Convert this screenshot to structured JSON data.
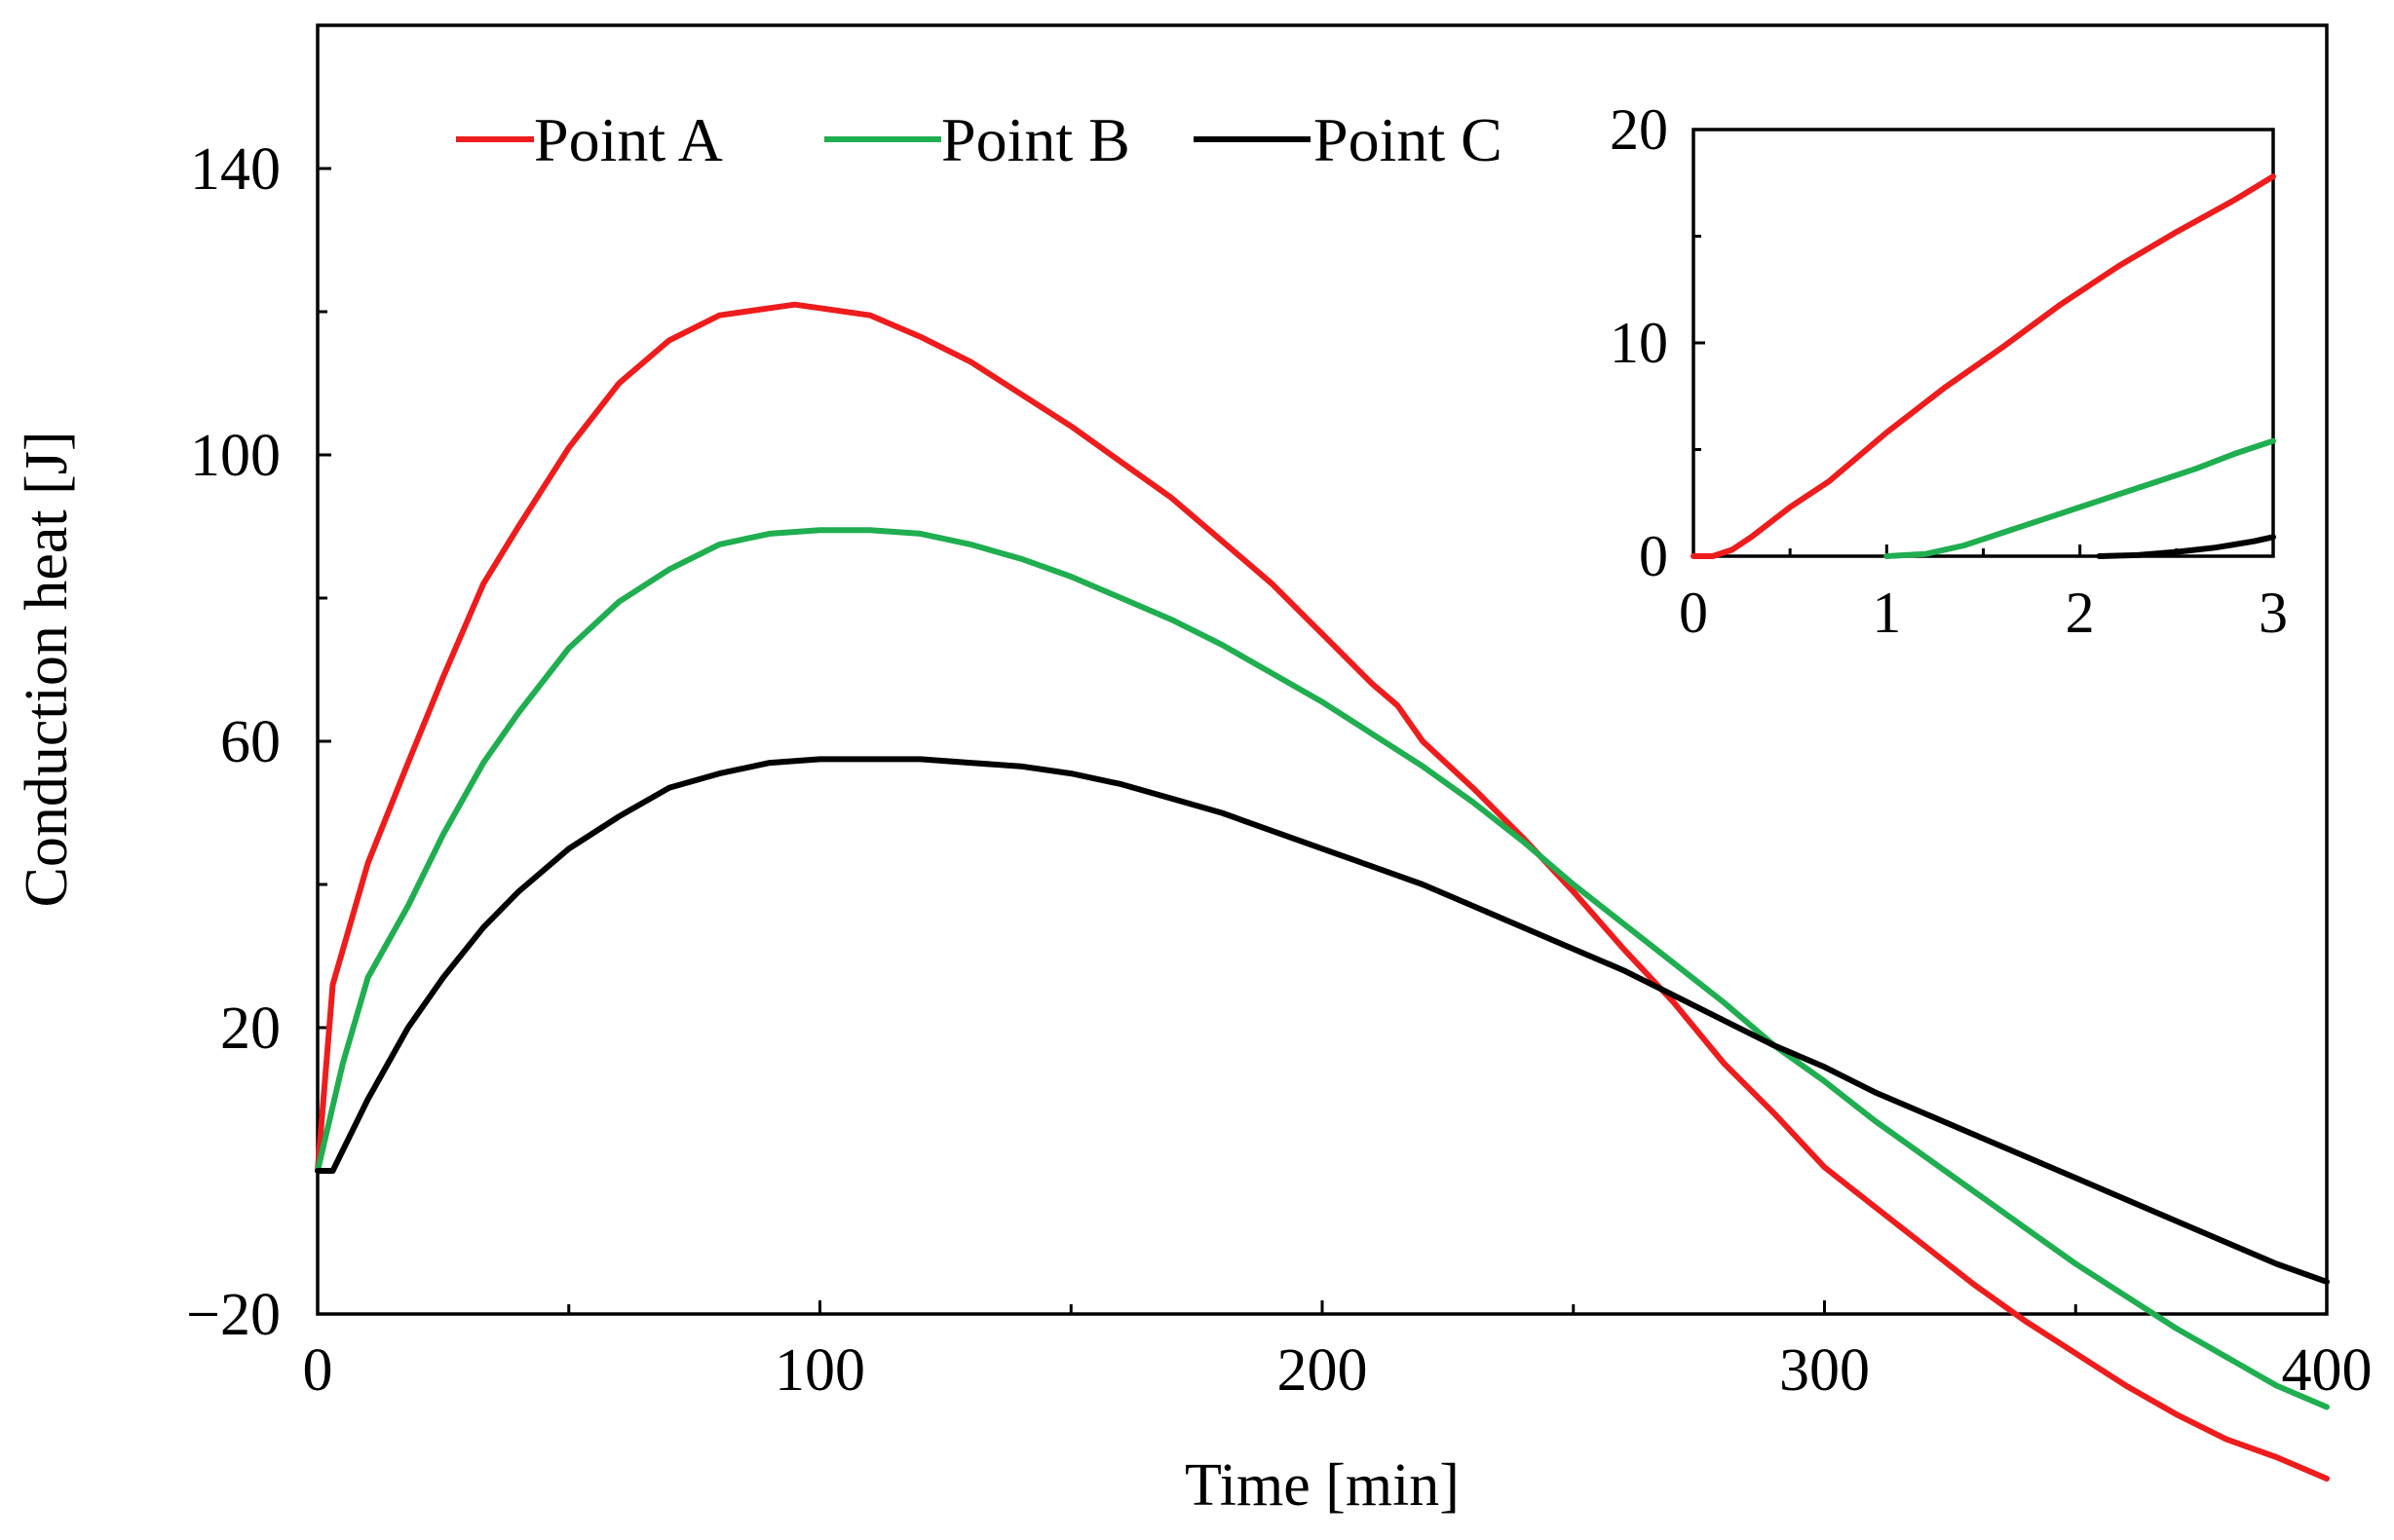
{
  "chart_data": [
    {
      "type": "line",
      "xlabel": "Time [min]",
      "ylabel": "Conduction heat [J]",
      "xlim": [
        0,
        400
      ],
      "ylim": [
        -20,
        160
      ],
      "xticks": [
        0,
        100,
        200,
        300,
        400
      ],
      "yticks": [
        -20,
        20,
        60,
        100,
        140
      ],
      "xtick_labels": [
        "0",
        "100",
        "200",
        "300",
        "400"
      ],
      "ytick_labels": [
        "−20",
        "20",
        "60",
        "100",
        "140"
      ],
      "grid": false,
      "legend": "top-left, horizontal",
      "series": [
        {
          "name": "Point A",
          "color": "#ee1c1c",
          "x": [
            0,
            3,
            10,
            18,
            25,
            33,
            40,
            50,
            60,
            70,
            80,
            90,
            95,
            100,
            110,
            120,
            130,
            140,
            150,
            160,
            170,
            180,
            190,
            200,
            210,
            215,
            220,
            230,
            240,
            250,
            260,
            270,
            280,
            290,
            300,
            310,
            320,
            330,
            340,
            350,
            360,
            370,
            380,
            390,
            400
          ],
          "y": [
            0,
            26,
            43,
            57,
            69,
            82,
            90,
            101,
            110,
            116,
            119.5,
            120.5,
            121,
            120.5,
            119.5,
            116.5,
            113,
            108.5,
            104,
            99,
            94,
            88,
            82,
            75,
            68,
            65,
            60,
            53.5,
            46.5,
            39,
            31,
            23.5,
            15,
            8,
            0.5,
            -5,
            -10.5,
            -16,
            -21,
            -25.5,
            -30,
            -34,
            -37.5,
            -40,
            -43
          ]
        },
        {
          "name": "Point B",
          "color": "#1fae50",
          "x": [
            0,
            5,
            10,
            18,
            25,
            33,
            40,
            50,
            60,
            70,
            80,
            90,
            100,
            110,
            120,
            130,
            140,
            150,
            160,
            170,
            180,
            190,
            200,
            210,
            220,
            230,
            240,
            250,
            260,
            270,
            280,
            290,
            300,
            310,
            320,
            330,
            340,
            350,
            360,
            370,
            380,
            390,
            400
          ],
          "y": [
            0,
            15,
            27,
            37,
            47,
            57,
            64,
            73,
            79.5,
            84,
            87.5,
            89,
            89.5,
            89.5,
            89,
            87.5,
            85.5,
            83,
            80,
            77,
            73.5,
            69.5,
            65.5,
            61,
            56.5,
            51.5,
            46,
            40,
            34.5,
            29,
            23.5,
            17.5,
            12.5,
            7,
            2,
            -3,
            -8,
            -13,
            -17.5,
            -22,
            -26,
            -30,
            -33
          ]
        },
        {
          "name": "Point C",
          "color": "#000000",
          "x": [
            0,
            3,
            10,
            18,
            25,
            33,
            40,
            50,
            60,
            70,
            80,
            90,
            100,
            110,
            120,
            130,
            140,
            150,
            160,
            170,
            180,
            190,
            200,
            210,
            220,
            230,
            240,
            250,
            260,
            270,
            280,
            290,
            300,
            310,
            320,
            330,
            340,
            350,
            360,
            370,
            380,
            390,
            400
          ],
          "y": [
            0,
            0,
            10,
            20,
            27,
            34,
            39,
            45,
            49.5,
            53.5,
            55.5,
            57,
            57.5,
            57.5,
            57.5,
            57,
            56.5,
            55.5,
            54,
            52,
            50,
            47.5,
            45,
            42.5,
            40,
            37,
            34,
            31,
            28,
            24.5,
            21,
            17.5,
            14.5,
            11,
            8,
            5,
            2,
            -1,
            -4,
            -7,
            -10,
            -13,
            -15.5
          ]
        }
      ]
    },
    {
      "type": "line",
      "xlim": [
        0,
        3
      ],
      "ylim": [
        0,
        20
      ],
      "xticks": [
        0,
        1,
        2,
        3
      ],
      "yticks": [
        0,
        10,
        20
      ],
      "xtick_labels": [
        "0",
        "1",
        "2",
        "3"
      ],
      "ytick_labels": [
        "0",
        "10",
        "20"
      ],
      "grid": false,
      "series": [
        {
          "name": "Point A",
          "color": "#ee1c1c",
          "x": [
            0,
            0.1,
            0.2,
            0.3,
            0.5,
            0.7,
            1,
            1.3,
            1.6,
            1.9,
            2.2,
            2.5,
            2.8,
            3
          ],
          "y": [
            0,
            0,
            0.3,
            0.9,
            2.3,
            3.5,
            5.8,
            7.9,
            9.8,
            11.8,
            13.6,
            15.2,
            16.7,
            17.8
          ]
        },
        {
          "name": "Point B",
          "color": "#1fae50",
          "x": [
            1,
            1.2,
            1.4,
            1.6,
            1.8,
            2,
            2.2,
            2.4,
            2.6,
            2.8,
            3
          ],
          "y": [
            0,
            0.1,
            0.5,
            1.1,
            1.7,
            2.3,
            2.9,
            3.5,
            4.1,
            4.8,
            5.4
          ]
        },
        {
          "name": "Point C",
          "color": "#000000",
          "x": [
            2.1,
            2.3,
            2.5,
            2.7,
            2.9,
            3
          ],
          "y": [
            0,
            0.05,
            0.2,
            0.4,
            0.7,
            0.9
          ]
        }
      ]
    }
  ]
}
